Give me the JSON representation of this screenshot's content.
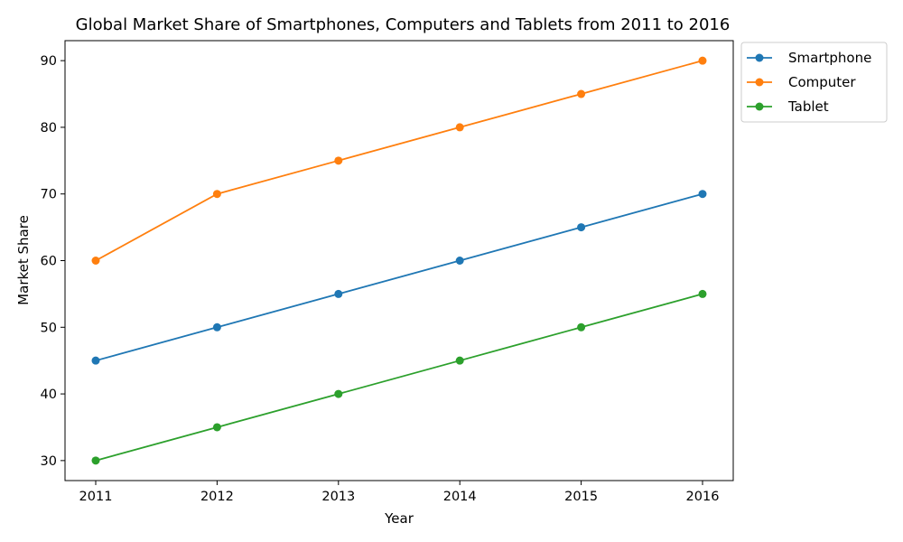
{
  "chart_data": {
    "type": "line",
    "title": "Global Market Share of Smartphones, Computers and Tablets from 2011 to 2016",
    "xlabel": "Year",
    "ylabel": "Market Share",
    "x": [
      "2011",
      "2012",
      "2013",
      "2014",
      "2015",
      "2016"
    ],
    "yticks": [
      30,
      40,
      50,
      60,
      70,
      80,
      90
    ],
    "ylim": [
      27,
      93
    ],
    "grid": false,
    "legend_position": "outside-top-right",
    "series": [
      {
        "name": "Smartphone",
        "color": "#1f77b4",
        "values": [
          45,
          50,
          55,
          60,
          65,
          70
        ]
      },
      {
        "name": "Computer",
        "color": "#ff7f0e",
        "values": [
          60,
          70,
          75,
          80,
          85,
          90
        ]
      },
      {
        "name": "Tablet",
        "color": "#2ca02c",
        "values": [
          30,
          35,
          40,
          45,
          50,
          55
        ]
      }
    ]
  }
}
